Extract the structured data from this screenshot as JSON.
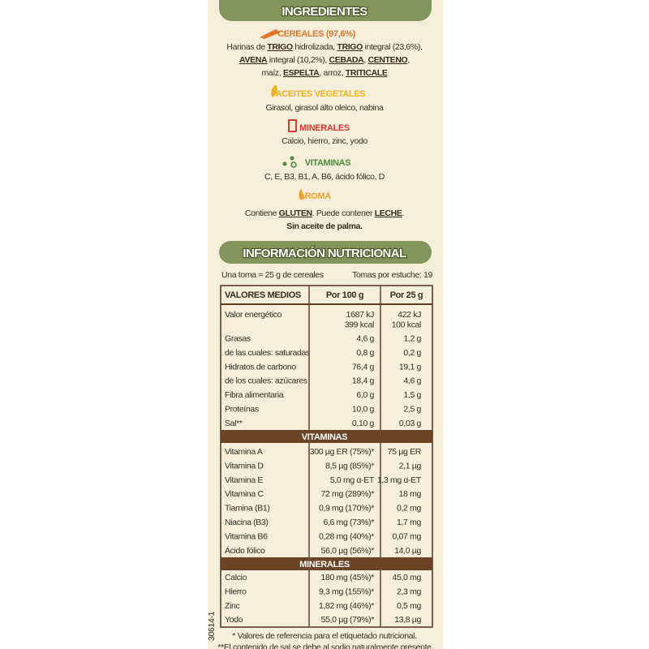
{
  "ingredients": {
    "title": "INGREDIENTES",
    "groups": [
      {
        "heading": "CEREALES (97,6%)",
        "color": "#e2762a",
        "lines": [
          [
            {
              "text": "Harinas de "
            },
            {
              "text": "TRIGO",
              "bold": true,
              "underline": true
            },
            {
              "text": " hidrolizada, "
            },
            {
              "text": "TRIGO",
              "bold": true,
              "underline": true
            },
            {
              "text": " integral (23,6%),"
            }
          ],
          [
            {
              "text": "AVENA",
              "bold": true,
              "underline": true
            },
            {
              "text": " integral (10,2%), "
            },
            {
              "text": "CEBADA",
              "bold": true,
              "underline": true
            },
            {
              "text": ", "
            },
            {
              "text": "CENTENO",
              "bold": true,
              "underline": true
            },
            {
              "text": ","
            }
          ],
          [
            {
              "text": "maíz, "
            },
            {
              "text": "ESPELTA",
              "bold": true,
              "underline": true
            },
            {
              "text": ", arroz, "
            },
            {
              "text": "TRITICALE",
              "bold": true,
              "underline": true
            }
          ]
        ]
      },
      {
        "heading": "ACEITES VEGETALES",
        "color": "#efb31f",
        "lines": [
          [
            {
              "text": "Girasol, girasol alto oleico, nabina"
            }
          ]
        ]
      },
      {
        "heading": "MINERALES",
        "color": "#d8392c",
        "lines": [
          [
            {
              "text": "Calcio, hierro, zinc, yodo"
            }
          ]
        ]
      },
      {
        "heading": "VITAMINAS",
        "color": "#4e8b3a",
        "lines": [
          [
            {
              "text": "C, E, B3, B1, A, B6, ácido fólico, D"
            }
          ]
        ]
      },
      {
        "heading": "AROMA",
        "color": "#f0a02e",
        "lines": []
      }
    ],
    "allergens": [
      [
        {
          "text": "Contiene "
        },
        {
          "text": "GLUTEN",
          "bold": true,
          "underline": true
        },
        {
          "text": ". Puede contener "
        },
        {
          "text": "LECHE",
          "bold": true,
          "underline": true
        },
        {
          "text": "."
        }
      ],
      [
        {
          "text": "Sin aceite de palma.",
          "bold": true
        }
      ]
    ]
  },
  "nutrition": {
    "title": "INFORMACIÓN NUTRICIONAL",
    "serving": "Una toma = 25 g de cereales",
    "servings_per_pack": "Tomas por estuche: 19",
    "header": [
      "VALORES MEDIOS",
      "Por 100 g",
      "Por 25 g"
    ],
    "rows": [
      [
        [
          "Valor energético"
        ],
        [
          "1687 kJ",
          "399 kcal"
        ],
        [
          "422 kJ",
          "100 kcal"
        ]
      ],
      [
        [
          "Grasas"
        ],
        [
          "4,6 g"
        ],
        [
          "1,2 g"
        ]
      ],
      [
        [
          "de las cuales: saturadas"
        ],
        [
          "0,8 g"
        ],
        [
          "0,2 g"
        ]
      ],
      [
        [
          "Hidratos de carbono"
        ],
        [
          "76,4 g"
        ],
        [
          "19,1 g"
        ]
      ],
      [
        [
          "de los cuales: azúcares"
        ],
        [
          "18,4 g"
        ],
        [
          "4,6 g"
        ]
      ],
      [
        [
          "Fibra alimentaria"
        ],
        [
          "6,0 g"
        ],
        [
          "1,5 g"
        ]
      ],
      [
        [
          "Proteínas"
        ],
        [
          "10,0 g"
        ],
        [
          "2,5 g"
        ]
      ],
      [
        [
          "Sal**"
        ],
        [
          "0,10 g"
        ],
        [
          "0,03 g"
        ]
      ]
    ],
    "vitamins": {
      "title": "VITAMINAS",
      "rows": [
        [
          "Vitamina A",
          "300 µg ER (75%)*",
          "75 µg ER"
        ],
        [
          "Vitamina D",
          "8,5 µg (85%)*",
          "2,1 µg"
        ],
        [
          "Vitamina E",
          "5,0 mg α-ET",
          "1,3 mg α-ET"
        ],
        [
          "Vitamina C",
          "72 mg (289%)*",
          "18 mg"
        ],
        [
          "Tiamina (B1)",
          "0,9 mg (170%)*",
          "0,2 mg"
        ],
        [
          "Niacina (B3)",
          "6,6 mg (73%)*",
          "1,7 mg"
        ],
        [
          "Vitamina B6",
          "0,28 mg (40%)*",
          "0,07 mg"
        ],
        [
          "Ácido fólico",
          "56,0 µg (56%)*",
          "14,0 µg"
        ]
      ]
    },
    "minerals": {
      "title": "MINERALES",
      "rows": [
        [
          "Calcio",
          "180 mg (45%)*",
          "45,0 mg"
        ],
        [
          "Hierro",
          "9,3 mg (155%)*",
          "2,3 mg"
        ],
        [
          "Zinc",
          "1,82 mg (46%)*",
          "0,5 mg"
        ],
        [
          "Yodo",
          "55,0 µg (79%)*",
          "13,8 µg"
        ]
      ]
    },
    "footnotes": [
      "* Valores de referencia para el etiquetado nutricional.",
      "**El contenido de sal se debe al sodio naturalmente presente"
    ]
  },
  "code": "30614-1"
}
